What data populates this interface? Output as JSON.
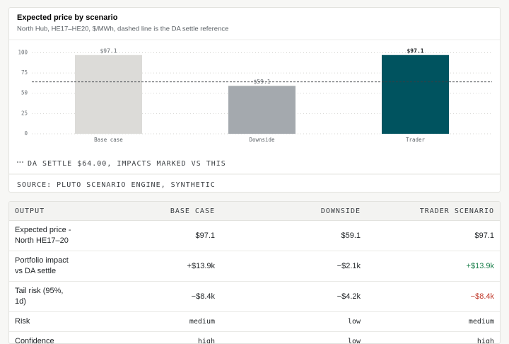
{
  "chart_data": {
    "type": "bar",
    "title": "Expected price by scenario",
    "subtitle": "North Hub, HE17–HE20, $/MWh, dashed line is the DA settle reference",
    "categories": [
      "Base case",
      "Downside",
      "Trader"
    ],
    "values": [
      97.1,
      59.1,
      97.1
    ],
    "value_labels": [
      "$97.1",
      "$59.1",
      "$97.1"
    ],
    "colors": [
      "#dcdbd8",
      "#a4a9ae",
      "#00535f"
    ],
    "ylim": [
      0,
      110
    ],
    "yticks": [
      0,
      25,
      50,
      75,
      100
    ],
    "grid": true,
    "reference": {
      "value": 64,
      "label": "DA SETTLE $64.00, IMPACTS MARKED VS THIS"
    },
    "source": "SOURCE: PLUTO SCENARIO ENGINE, SYNTHETIC"
  },
  "table": {
    "header": [
      "OUTPUT",
      "BASE CASE",
      "DOWNSIDE",
      "TRADER SCENARIO"
    ],
    "rows": [
      [
        "Expected price - North HE17–20",
        "$97.1",
        "$59.1",
        "$97.1"
      ],
      [
        "Portfolio impact vs DA settle",
        "+$13.9k",
        "−$2.1k",
        "+$13.9k"
      ],
      [
        "Tail risk (95%, 1d)",
        "−$8.4k",
        "−$4.2k",
        "−$8.4k"
      ],
      [
        "Risk",
        "medium",
        "low",
        "medium"
      ],
      [
        "Confidence",
        "high",
        "low",
        "high"
      ]
    ]
  }
}
